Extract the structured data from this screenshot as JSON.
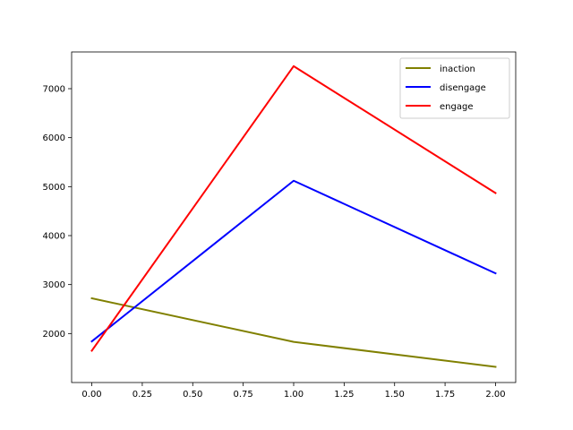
{
  "chart_data": {
    "type": "line",
    "title": "",
    "xlabel": "",
    "ylabel": "",
    "x": [
      0,
      1,
      2
    ],
    "xlim": [
      -0.1,
      2.1
    ],
    "ylim": [
      1000,
      7750
    ],
    "xticks": [
      "0.00",
      "0.25",
      "0.50",
      "0.75",
      "1.00",
      "1.25",
      "1.50",
      "1.75",
      "2.00"
    ],
    "yticks": [
      "2000",
      "3000",
      "4000",
      "5000",
      "6000",
      "7000"
    ],
    "grid": false,
    "legend_position": "top-right",
    "series": [
      {
        "name": "inaction",
        "color": "#808000",
        "values": [
          2720,
          1830,
          1320
        ]
      },
      {
        "name": "disengage",
        "color": "#0000ff",
        "values": [
          1840,
          5120,
          3230
        ]
      },
      {
        "name": "engage",
        "color": "#ff0000",
        "values": [
          1650,
          7460,
          4870
        ]
      }
    ]
  }
}
